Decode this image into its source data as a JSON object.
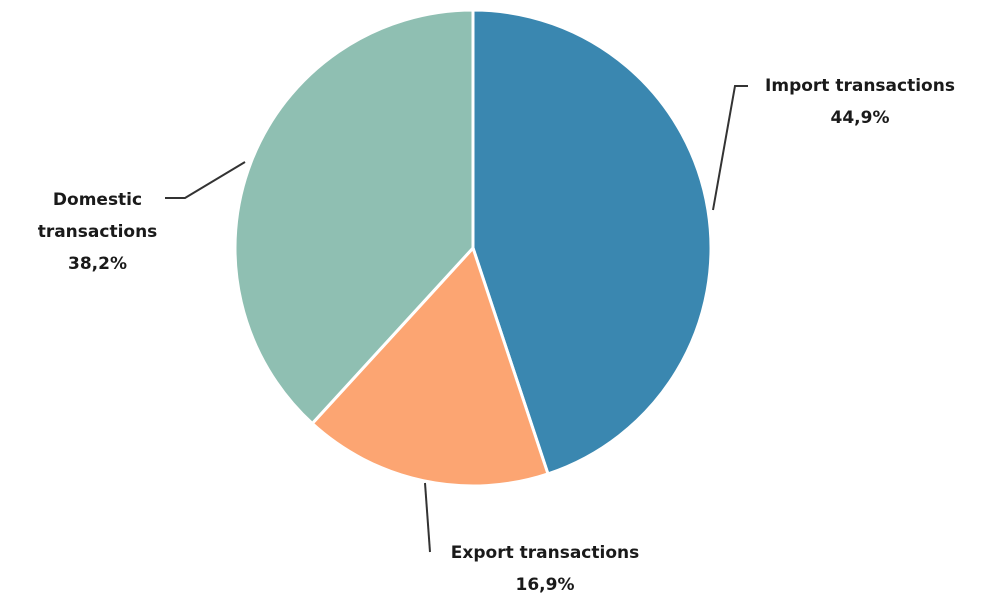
{
  "chart_data": {
    "type": "pie",
    "categories": [
      "Import transactions",
      "Export transactions",
      "Domestic transactions"
    ],
    "values": [
      44.9,
      16.9,
      38.2
    ],
    "value_labels": [
      "44,9%",
      "16,9%",
      "38,2%"
    ],
    "colors": [
      "#3a87b0",
      "#fca572",
      "#8fbfb2"
    ]
  }
}
